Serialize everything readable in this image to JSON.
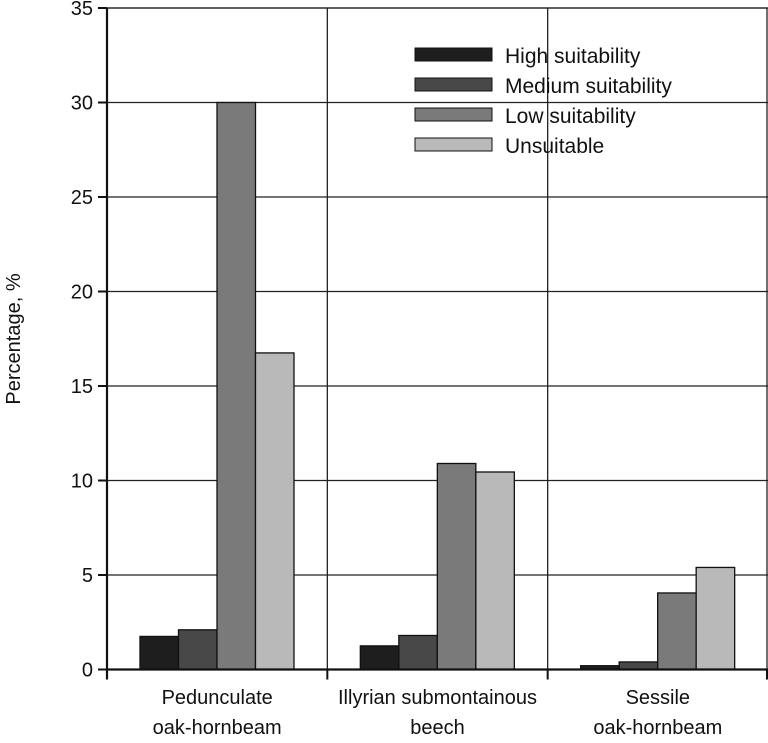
{
  "chart_data": {
    "type": "bar",
    "title": "",
    "xlabel": "",
    "ylabel": "Percentage, %",
    "ylim": [
      0,
      35
    ],
    "yticks": [
      "0",
      "5",
      "10",
      "15",
      "20",
      "25",
      "30",
      "35"
    ],
    "grid": true,
    "legend_position": "top-right",
    "categories": [
      [
        "Pedunculate",
        "oak-hornbeam"
      ],
      [
        "Illyrian submontainous",
        "beech"
      ],
      [
        "Sessile",
        "oak-hornbeam"
      ]
    ],
    "series": [
      {
        "name": "High suitability",
        "color": "#1e1e1e",
        "values": [
          1.75,
          1.25,
          0.2
        ]
      },
      {
        "name": "Medium suitability",
        "color": "#484848",
        "values": [
          2.1,
          1.8,
          0.4
        ]
      },
      {
        "name": "Low suitability",
        "color": "#7a7a7a",
        "values": [
          30.0,
          10.9,
          4.05
        ]
      },
      {
        "name": "Unsuitable",
        "color": "#b9b9b9",
        "values": [
          16.75,
          10.45,
          5.4
        ]
      }
    ]
  }
}
